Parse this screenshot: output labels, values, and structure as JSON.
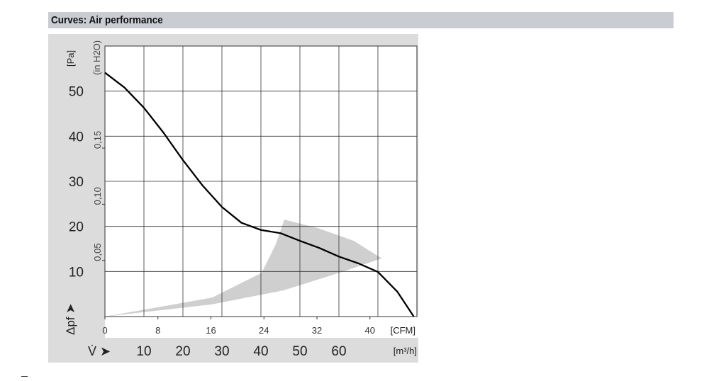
{
  "header": {
    "title": "Curves: Air performance"
  },
  "chart_data": {
    "type": "line",
    "xlabel": "V̇",
    "ylabel": "Δpf",
    "x_unit": "[m³/h]",
    "x2_unit": "[CFM]",
    "y_unit": "[Pa]",
    "y2_unit": "(in H2O)",
    "xlim": [
      0,
      80
    ],
    "ylim": [
      0,
      60
    ],
    "grid": true,
    "x_ticks": [
      10,
      20,
      30,
      40,
      50,
      60
    ],
    "x2_ticks": [
      0,
      8,
      16,
      24,
      32,
      40
    ],
    "y_ticks": [
      10,
      20,
      30,
      40,
      50
    ],
    "y2_ticks": [
      "0,05",
      "0,10",
      "0,15"
    ],
    "y2_tick_values": [
      0.05,
      0.1,
      0.15
    ],
    "series": [
      {
        "x": [
          0,
          5,
          10,
          15,
          20,
          25,
          30,
          35,
          40,
          45,
          50,
          55,
          60,
          65,
          70,
          75,
          79.2
        ],
        "y": [
          54.1,
          50.8,
          46.3,
          40.8,
          34.7,
          29.1,
          24.3,
          20.8,
          19.2,
          18.5,
          16.8,
          15.2,
          13.3,
          11.8,
          9.9,
          5.5,
          0
        ]
      }
    ],
    "operating_range": {
      "x": [
        0,
        27.5,
        40.2,
        43.8,
        46.0,
        54.7,
        63.8,
        71.0,
        60.1,
        45.7,
        27.5,
        0
      ],
      "y": [
        0,
        4.2,
        9.7,
        16.0,
        21.5,
        19.6,
        16.8,
        12.9,
        9.7,
        5.8,
        2.7,
        0
      ]
    },
    "colors": {
      "curve": "#000000",
      "range": "#cfcfd0",
      "panel": "#dcdcdd",
      "grid": "#333333"
    }
  }
}
